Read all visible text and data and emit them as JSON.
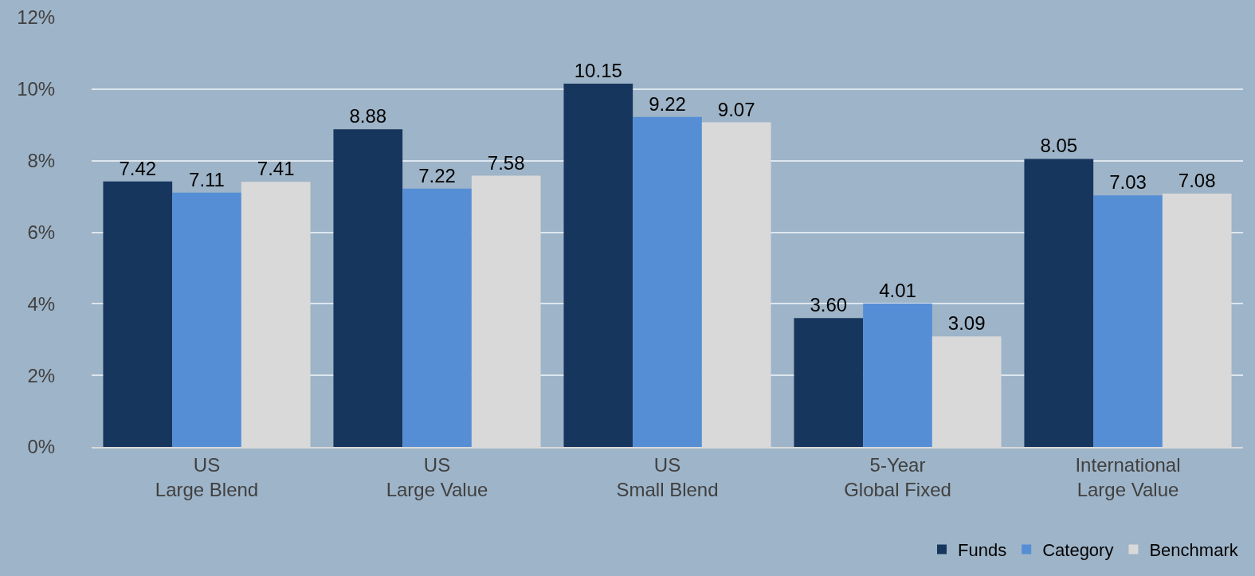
{
  "chart_data": {
    "type": "bar",
    "categories": [
      "US\nLarge Blend",
      "US\nLarge Value",
      "US\nSmall Blend",
      "5-Year\nGlobal Fixed",
      "International\nLarge Value"
    ],
    "series": [
      {
        "name": "Funds",
        "color": "#17365d",
        "values": [
          7.42,
          8.88,
          10.15,
          3.6,
          8.05
        ],
        "value_labels": [
          "7.42",
          "8.88",
          "10.15",
          "3.60",
          "8.05"
        ]
      },
      {
        "name": "Category",
        "color": "#558ed5",
        "values": [
          7.11,
          7.22,
          9.22,
          4.01,
          7.03
        ],
        "value_labels": [
          "7.11",
          "7.22",
          "9.22",
          "4.01",
          "7.03"
        ]
      },
      {
        "name": "Benchmark",
        "color": "#d9d9d9",
        "values": [
          7.41,
          7.58,
          9.07,
          3.09,
          7.08
        ],
        "value_labels": [
          "7.41",
          "7.58",
          "9.07",
          "3.09",
          "7.08"
        ]
      }
    ],
    "ylim": [
      0,
      12
    ],
    "yticks": [
      {
        "value": 0,
        "label": "0%"
      },
      {
        "value": 2,
        "label": "2%"
      },
      {
        "value": 4,
        "label": "4%"
      },
      {
        "value": 6,
        "label": "6%"
      },
      {
        "value": 8,
        "label": "8%"
      },
      {
        "value": 10,
        "label": "10%"
      },
      {
        "value": 12,
        "label": "12%"
      }
    ],
    "grid": "y",
    "legend": "bottom right"
  }
}
